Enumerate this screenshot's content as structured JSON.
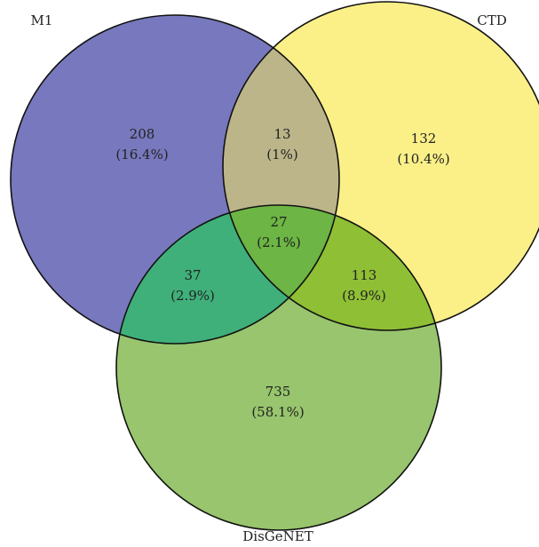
{
  "sets": [
    {
      "id": "m1",
      "label": "M1",
      "color": "#7878be"
    },
    {
      "id": "ctd",
      "label": "CTD",
      "color": "#fbf088"
    },
    {
      "id": "disgenet",
      "label": "DisGeNET",
      "color": "#98c56d"
    }
  ],
  "regions": [
    {
      "id": "m1-only",
      "sets": [
        "M1"
      ],
      "count": "208",
      "percent": "(16.4%)"
    },
    {
      "id": "m1-ctd",
      "sets": [
        "M1",
        "CTD"
      ],
      "count": "13",
      "percent": "(1%)"
    },
    {
      "id": "ctd-only",
      "sets": [
        "CTD"
      ],
      "count": "132",
      "percent": "(10.4%)"
    },
    {
      "id": "all-three",
      "sets": [
        "M1",
        "CTD",
        "DisGeNET"
      ],
      "count": "27",
      "percent": "(2.1%)"
    },
    {
      "id": "m1-disgenet",
      "sets": [
        "M1",
        "DisGeNET"
      ],
      "count": "37",
      "percent": "(2.9%)"
    },
    {
      "id": "ctd-disgenet",
      "sets": [
        "CTD",
        "DisGeNET"
      ],
      "count": "113",
      "percent": "(8.9%)"
    },
    {
      "id": "disgenet-only",
      "sets": [
        "DisGeNET"
      ],
      "count": "735",
      "percent": "(58.1%)"
    }
  ],
  "region_colors": {
    "m1-ctd": "#bcb58a",
    "m1-disgenet": "#3fb07a",
    "ctd-disgenet": "#8fbf35",
    "all-three": "#6db544"
  }
}
